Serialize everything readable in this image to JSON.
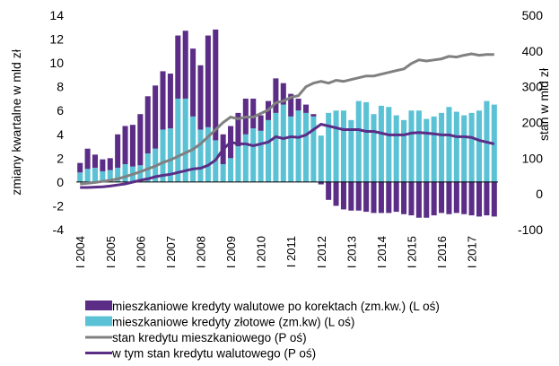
{
  "chart_data": {
    "type": "bar",
    "y_label": "zmiany kwartalne  w mld zł",
    "y2_label": "stan  w mld zł",
    "categories": [
      "I 2004",
      null,
      null,
      null,
      "I 2005",
      null,
      null,
      null,
      "I 2006",
      null,
      null,
      null,
      "I 2007",
      null,
      null,
      null,
      "I 2008",
      null,
      null,
      null,
      "I 2009",
      null,
      null,
      null,
      "I 2010",
      null,
      null,
      null,
      "I 2011",
      null,
      null,
      null,
      "I 2012",
      null,
      null,
      null,
      "I 2013",
      null,
      null,
      null,
      "I 2014",
      null,
      null,
      null,
      "I 2015",
      null,
      null,
      null,
      "I 2016",
      null,
      null,
      null,
      "I 2017",
      null,
      null,
      null
    ],
    "ylim": [
      -4,
      14
    ],
    "yticks": [
      -4,
      -2,
      0,
      2,
      4,
      6,
      8,
      10,
      12,
      14
    ],
    "y2lim": [
      -100,
      500
    ],
    "y2ticks": [
      -100,
      0,
      100,
      200,
      300,
      400,
      500
    ],
    "grid": false,
    "series": [
      {
        "name": "mieszkaniowe kredyty walutowe po korektach (zm.kw.) (L oś)",
        "type": "bar",
        "stack_order": 1,
        "color": "#5b2d86",
        "values": [
          0.8,
          1.7,
          1.1,
          1.0,
          1.0,
          2.8,
          3.2,
          3.5,
          4.3,
          4.8,
          5.3,
          4.9,
          4.6,
          5.3,
          5.7,
          5.7,
          5.4,
          7.7,
          9.3,
          2.5,
          2.7,
          2.8,
          3.0,
          2.5,
          1.3,
          1.6,
          2.9,
          1.8,
          1.9,
          1.0,
          0.7,
          0.2,
          -0.2,
          -1.5,
          -2.0,
          -2.3,
          -2.4,
          -2.4,
          -2.5,
          -2.6,
          -2.6,
          -2.6,
          -2.5,
          -2.7,
          -2.8,
          -3.0,
          -3.0,
          -2.8,
          -2.6,
          -2.7,
          -2.6,
          -2.7,
          -2.8,
          -2.9,
          -2.8,
          -2.9
        ]
      },
      {
        "name": "mieszkaniowe kredyty złotowe (zm.kw) (L oś)",
        "type": "bar",
        "stack_order": 0,
        "color": "#5bc2d6",
        "values": [
          0.8,
          1.1,
          1.2,
          0.9,
          1.0,
          1.2,
          1.5,
          1.3,
          1.4,
          2.4,
          2.8,
          4.4,
          4.5,
          7.0,
          7.0,
          5.5,
          4.4,
          4.6,
          3.5,
          1.5,
          2.0,
          3.0,
          4.0,
          4.5,
          4.3,
          5.2,
          5.8,
          6.5,
          5.5,
          6.0,
          5.8,
          5.5,
          3.9,
          5.8,
          6.0,
          6.0,
          5.2,
          6.8,
          6.7,
          5.7,
          6.4,
          6.3,
          5.6,
          5.2,
          6.0,
          6.0,
          5.3,
          5.5,
          5.8,
          6.3,
          5.9,
          5.6,
          5.8,
          6.0,
          6.8,
          6.5
        ]
      },
      {
        "name": "stan kredytu mieszkaniowego (P oś)",
        "type": "line",
        "axis": "y2",
        "color": "#808080",
        "values": [
          28,
          30,
          32,
          35,
          38,
          42,
          48,
          55,
          62,
          70,
          78,
          88,
          95,
          105,
          115,
          125,
          140,
          160,
          180,
          200,
          215,
          210,
          215,
          215,
          225,
          235,
          255,
          260,
          270,
          275,
          300,
          310,
          315,
          310,
          318,
          315,
          320,
          325,
          330,
          330,
          335,
          340,
          345,
          350,
          365,
          375,
          372,
          375,
          378,
          385,
          383,
          388,
          392,
          388,
          390,
          390
        ]
      },
      {
        "name": "w tym stan kredytu walutowego (P oś)",
        "type": "line",
        "axis": "y2",
        "color": "#5b2d86",
        "values": [
          18,
          18,
          19,
          20,
          22,
          25,
          28,
          33,
          38,
          42,
          48,
          52,
          55,
          60,
          65,
          70,
          72,
          80,
          95,
          125,
          145,
          140,
          140,
          135,
          140,
          145,
          160,
          155,
          160,
          158,
          165,
          180,
          195,
          190,
          185,
          180,
          180,
          180,
          175,
          175,
          170,
          165,
          165,
          165,
          170,
          172,
          170,
          168,
          165,
          165,
          160,
          160,
          158,
          150,
          145,
          140
        ]
      }
    ]
  }
}
